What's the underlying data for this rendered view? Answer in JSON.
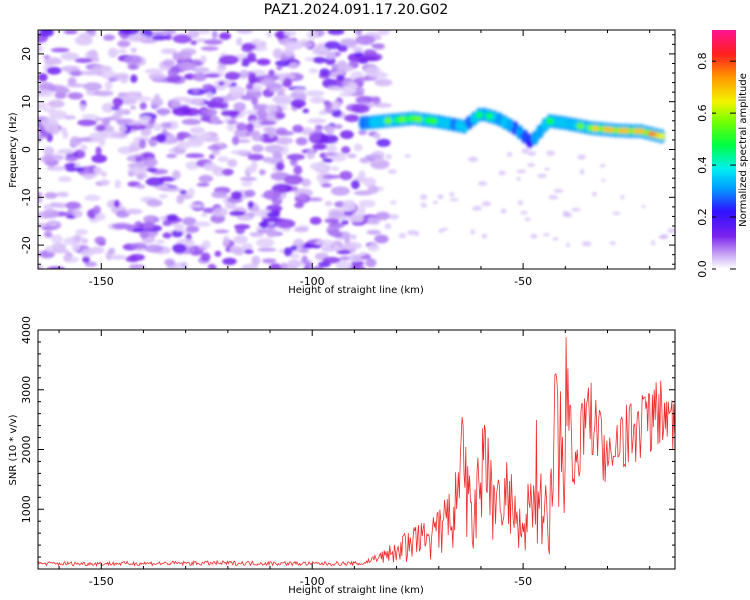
{
  "figure_title": "PAZ1.2024.091.17.20.G02",
  "colors": {
    "snr_line": "#ee2a2a"
  },
  "chart_data": [
    {
      "type": "heatmap",
      "xlabel": "Height of straight line (km)",
      "ylabel": "Frequency (Hz)",
      "xlim": [
        -165,
        -14
      ],
      "ylim": [
        -25,
        25
      ],
      "x_ticks": [
        -150,
        -100,
        -50
      ],
      "y_ticks": [
        -20,
        -10,
        0,
        10,
        20
      ],
      "noise_region_x": [
        -165,
        -83
      ],
      "signal_track": {
        "x": [
          -88,
          -82,
          -76,
          -70,
          -64,
          -60,
          -56,
          -52,
          -48,
          -44,
          -40,
          -34,
          -28,
          -22,
          -16
        ],
        "frequency": [
          5.5,
          6,
          6.5,
          5.8,
          4.8,
          7.5,
          6.5,
          4.5,
          1.5,
          6,
          5.5,
          4.5,
          4,
          3.8,
          2.5
        ],
        "amplitude": [
          0.3,
          0.5,
          0.55,
          0.45,
          0.35,
          0.45,
          0.4,
          0.3,
          0.25,
          0.45,
          0.35,
          0.6,
          0.75,
          0.7,
          0.85
        ]
      },
      "colorbar": {
        "label": "Normalized spectral amplitude",
        "range": [
          0,
          0.92
        ],
        "ticks": [
          0.0,
          0.2,
          0.4,
          0.6,
          0.8
        ],
        "colormap": "gist_rainbow_r"
      }
    },
    {
      "type": "line",
      "xlabel": "Height of straight line (km)",
      "ylabel": "SNR (10 * v/v)",
      "xlim": [
        -165,
        -14
      ],
      "ylim": [
        0,
        4000
      ],
      "x_ticks": [
        -150,
        -100,
        -50
      ],
      "y_ticks": [
        1000,
        2000,
        3000,
        4000
      ],
      "series": [
        {
          "x": [
            -165,
            -150,
            -120,
            -100,
            -88,
            -84,
            -80,
            -75,
            -70,
            -66,
            -64,
            -62,
            -60,
            -56,
            -54,
            -50,
            -47,
            -44,
            -42,
            -40,
            -38,
            -36,
            -34,
            -30,
            -28,
            -26,
            -22,
            -18,
            -16,
            -14
          ],
          "y": [
            100,
            100,
            110,
            100,
            100,
            250,
            450,
            700,
            900,
            1500,
            2600,
            900,
            2400,
            1600,
            1800,
            700,
            2400,
            1200,
            3600,
            4000,
            1700,
            2600,
            3000,
            2000,
            2800,
            2500,
            2800,
            3000,
            2800,
            2600
          ]
        }
      ]
    }
  ]
}
